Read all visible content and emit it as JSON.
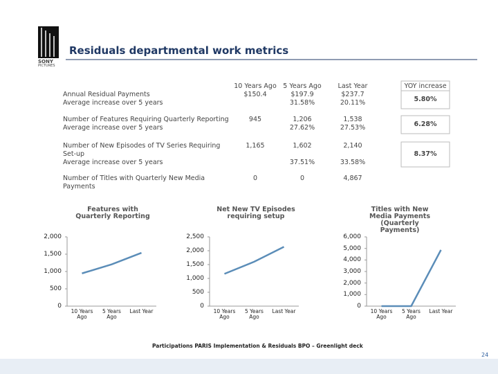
{
  "header": {
    "title": "Residuals departmental work metrics",
    "logo": {
      "brand": "SONY",
      "sub": "PICTURES"
    }
  },
  "table": {
    "columns": [
      "10 Years Ago",
      "5 Years Ago",
      "Last Year",
      "YOY increase"
    ],
    "rows": [
      {
        "label": "Annual Residual Payments",
        "values": [
          "$150.4",
          "$197.9",
          "$237.7"
        ],
        "note": "Average increase over 5 years",
        "increases": [
          "31.58%",
          "20.11%"
        ],
        "yoy": "5.80%"
      },
      {
        "label": "Number of Features Requiring Quarterly Reporting",
        "values": [
          "945",
          "1,206",
          "1,538"
        ],
        "note": "Average increase over 5 years",
        "increases": [
          "27.62%",
          "27.53%"
        ],
        "yoy": "6.28%"
      },
      {
        "label": "Number of New Episodes of TV Series Requiring Set-up",
        "values": [
          "1,165",
          "1,602",
          "2,140"
        ],
        "note": "Average increase over 5 years",
        "increases": [
          "37.51%",
          "33.58%"
        ],
        "yoy": "8.37%"
      },
      {
        "label": "Number of Titles with Quarterly New Media Payments",
        "values": [
          "0",
          "0",
          "4,867"
        ]
      }
    ]
  },
  "chart_data": [
    {
      "type": "line",
      "title": "Features with Quarterly Reporting",
      "categories": [
        "10 Years Ago",
        "5 Years Ago",
        "Last Year"
      ],
      "values": [
        945,
        1206,
        1538
      ],
      "color": "#5b8db8",
      "ylim": [
        0,
        2000
      ],
      "yticks": [
        0,
        500,
        {
          "value": 1000,
          "label": "1,000"
        },
        {
          "value": 1500,
          "label": "1,500"
        },
        {
          "value": 2000,
          "label": "2,000"
        }
      ]
    },
    {
      "type": "line",
      "title": "Net New TV Episodes requiring setup",
      "categories": [
        "10 Years Ago",
        "5 Years Ago",
        "Last Year"
      ],
      "values": [
        1165,
        1602,
        2140
      ],
      "color": "#5b8db8",
      "ylim": [
        0,
        2500
      ],
      "yticks": [
        0,
        500,
        {
          "value": 1000,
          "label": "1,000"
        },
        {
          "value": 1500,
          "label": "1,500"
        },
        {
          "value": 2000,
          "label": "2,000"
        },
        {
          "value": 2500,
          "label": "2,500"
        }
      ]
    },
    {
      "type": "line",
      "title": "Titles with New Media Payments (Quarterly Payments)",
      "categories": [
        "10 Years Ago",
        "5 Years Ago",
        "Last Year"
      ],
      "values": [
        0,
        0,
        4867
      ],
      "color": "#5b8db8",
      "ylim": [
        0,
        6000
      ],
      "yticks": [
        0,
        {
          "value": 1000,
          "label": "1,000"
        },
        {
          "value": 2000,
          "label": "2,000"
        },
        {
          "value": 3000,
          "label": "3,000"
        },
        {
          "value": 4000,
          "label": "4,000"
        },
        {
          "value": 5000,
          "label": "5,000"
        },
        {
          "value": 6000,
          "label": "6,000"
        }
      ]
    }
  ],
  "footer": {
    "text": "Participations PARIS Implementation & Residuals BPO – Greenlight deck",
    "page": "24"
  }
}
